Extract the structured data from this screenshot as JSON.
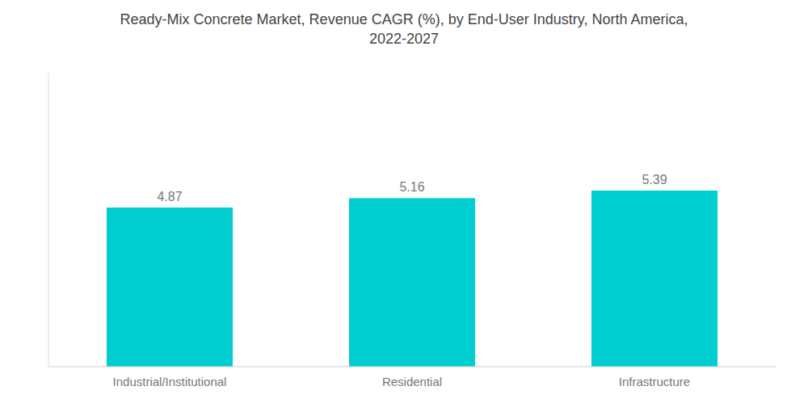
{
  "chart_data": {
    "type": "bar",
    "title": "Ready-Mix Concrete Market, Revenue CAGR (%), by End-User Industry, North America,\n2022-2027",
    "categories": [
      "Industrial/Institutional",
      "Residential",
      "Infrastructure"
    ],
    "values": [
      4.87,
      5.16,
      5.39
    ],
    "color": "#00CED1",
    "ylim": [
      0,
      9.0
    ],
    "data_labels": true,
    "tick_labels": "x",
    "grid": false
  }
}
